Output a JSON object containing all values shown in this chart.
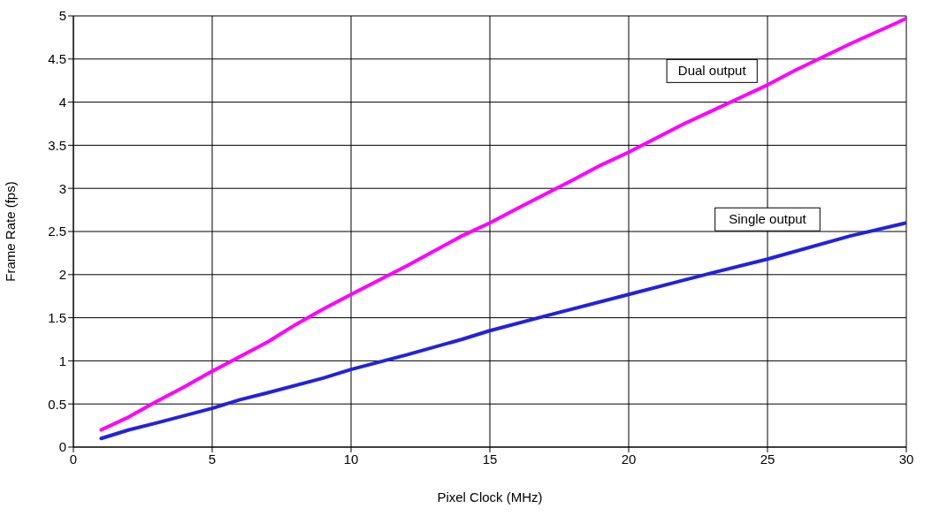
{
  "chart_data": {
    "type": "line",
    "xlabel": "Pixel Clock (MHz)",
    "ylabel": "Frame Rate (fps)",
    "xlim": [
      0,
      30
    ],
    "xticks": [
      0,
      5,
      10,
      15,
      20,
      25,
      30
    ],
    "ylim": [
      0,
      5
    ],
    "yticks": [
      0,
      0.5,
      1,
      1.5,
      2,
      2.5,
      3,
      3.5,
      4,
      4.5,
      5
    ],
    "grid": true,
    "legend": false,
    "marker": "none",
    "line_style": "solid",
    "series": [
      {
        "name": "Dual output",
        "color": "#ff00ff",
        "x": [
          1,
          2,
          3,
          4,
          5,
          6,
          7,
          8,
          9,
          10,
          12,
          14,
          15,
          16,
          18,
          19,
          20,
          22,
          23,
          24,
          25,
          26,
          28,
          30
        ],
        "values": [
          0.2,
          0.35,
          0.53,
          0.7,
          0.88,
          1.05,
          1.22,
          1.42,
          1.6,
          1.77,
          2.1,
          2.45,
          2.6,
          2.77,
          3.1,
          3.27,
          3.42,
          3.75,
          3.9,
          4.05,
          4.2,
          4.37,
          4.68,
          4.97
        ]
      },
      {
        "name": "Single output",
        "color": "#2222dd",
        "x": [
          1,
          2,
          3,
          5,
          6,
          7,
          9,
          10,
          12,
          14,
          15,
          17,
          20,
          23,
          25,
          28,
          30
        ],
        "values": [
          0.1,
          0.2,
          0.28,
          0.45,
          0.55,
          0.63,
          0.8,
          0.9,
          1.07,
          1.25,
          1.35,
          1.52,
          1.77,
          2.02,
          2.18,
          2.45,
          2.6
        ]
      }
    ]
  }
}
